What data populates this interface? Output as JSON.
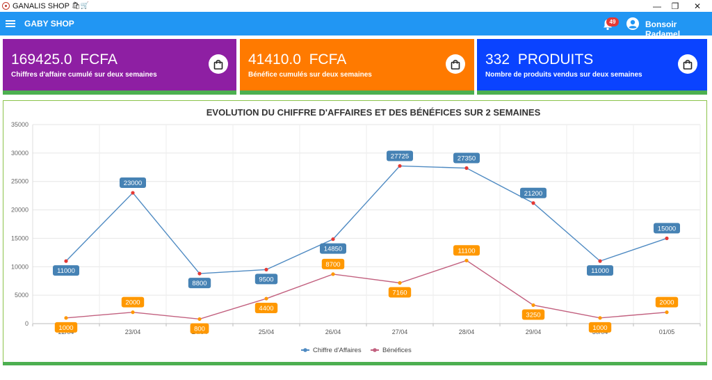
{
  "window": {
    "title": "GANALIS SHOP",
    "title_emoji": "🛍🛒",
    "controls": {
      "minimize": "—",
      "restore": "❐",
      "close": "✕"
    }
  },
  "appbar": {
    "shop_title": "GABY SHOP",
    "notification_count": "49",
    "greeting": "Bonsoir Radamel"
  },
  "cards": [
    {
      "value": "169425.0  FCFA",
      "caption": "Chiffres d'affaire cumulé sur deux semaines",
      "color": "#8e1fa3",
      "icon": "shopping-bag-icon"
    },
    {
      "value": "41410.0  FCFA",
      "caption": "Bénéfice cumulés sur deux semaines",
      "color": "#ff7a00",
      "icon": "shopping-bag-icon"
    },
    {
      "value": "332  PRODUITS",
      "caption": "Nombre de produits vendus sur deux semaines",
      "color": "#0a43ff",
      "icon": "shopping-bag-icon"
    }
  ],
  "chart_data": {
    "type": "line",
    "title": "EVOLUTION DU CHIFFRE D'AFFAIRES ET DES BÉNÉFICES SUR 2 SEMAINES",
    "categories": [
      "22/04",
      "23/04",
      "24/04",
      "25/04",
      "26/04",
      "27/04",
      "28/04",
      "29/04",
      "30/04",
      "01/05"
    ],
    "ylim": [
      0,
      35000
    ],
    "yticks": [
      0,
      5000,
      10000,
      15000,
      20000,
      25000,
      30000,
      35000
    ],
    "grid": true,
    "legend_position": "bottom",
    "series": [
      {
        "name": "Chiffre d'Affaires",
        "values": [
          11000,
          23000,
          8800,
          9500,
          14850,
          27725,
          27350,
          21200,
          11000,
          15000
        ],
        "line_color": "#4e8ac2",
        "label_color": "#4682b4"
      },
      {
        "name": "Bénéfices",
        "values": [
          1000,
          2000,
          800,
          4400,
          8700,
          7160,
          11100,
          3250,
          1000,
          2000
        ],
        "line_color": "#c2607f",
        "label_color": "#ff9800"
      }
    ]
  }
}
